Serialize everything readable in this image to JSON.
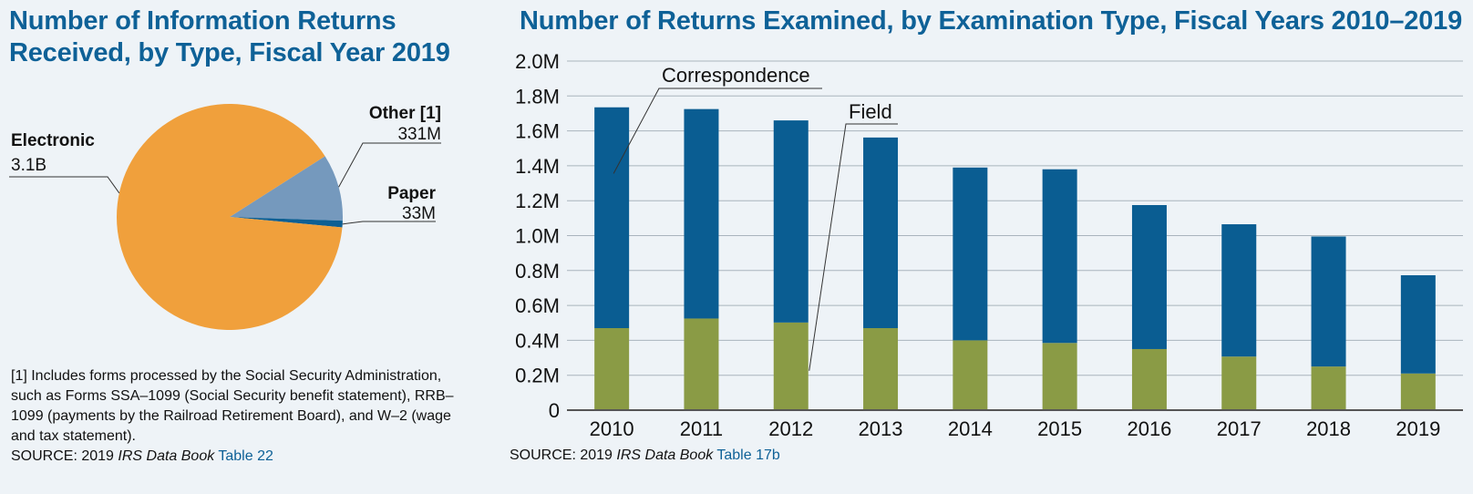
{
  "pie": {
    "title": "Number of Information Returns Received, by Type, Fiscal Year 2019",
    "footnote": "[1] Includes forms processed by the Social Security Administration, such as Forms SSA–1099 (Social Security benefit statement), RRB–1099 (payments by the Railroad Retirement Board), and W–2 (wage and tax statement).",
    "source_prefix": "SOURCE: 2019 ",
    "source_book": "IRS Data Book",
    "source_link": "Table 22"
  },
  "bar": {
    "title": "Number of Returns Examined, by Examination Type, Fiscal Years 2010–2019",
    "source_prefix": "SOURCE: 2019 ",
    "source_book": "IRS Data Book",
    "source_link": "Table 17b"
  },
  "chart_data": [
    {
      "type": "pie",
      "title": "Number of Information Returns Received, by Type, Fiscal Year 2019",
      "slices": [
        {
          "name": "Electronic",
          "label": "Electronic",
          "value_label": "3.1B",
          "value": 3100000000,
          "color": "#f0a03c"
        },
        {
          "name": "Other [1]",
          "label": "Other [1]",
          "value_label": "331M",
          "value": 331000000,
          "color": "#7599bd"
        },
        {
          "name": "Paper",
          "label": "Paper",
          "value_label": "33M",
          "value": 33000000,
          "color": "#0d5f93"
        }
      ]
    },
    {
      "type": "bar",
      "stacked": true,
      "title": "Number of Returns Examined, by Examination Type, Fiscal Years 2010–2019",
      "categories": [
        "2010",
        "2011",
        "2012",
        "2013",
        "2014",
        "2015",
        "2016",
        "2017",
        "2018",
        "2019"
      ],
      "series": [
        {
          "name": "Field",
          "color": "#8a9b45",
          "values": [
            470000,
            525000,
            502000,
            470000,
            400000,
            385000,
            350000,
            307000,
            250000,
            210000
          ]
        },
        {
          "name": "Correspondence",
          "color": "#0a5d92",
          "values": [
            1265000,
            1200000,
            1158000,
            1092000,
            990000,
            995000,
            825000,
            758000,
            745000,
            563000
          ]
        }
      ],
      "ylim": [
        0,
        2000000
      ],
      "yticks": [
        "0",
        "0.2M",
        "0.4M",
        "0.6M",
        "0.8M",
        "1.0M",
        "1.2M",
        "1.4M",
        "1.6M",
        "1.8M",
        "2.0M"
      ],
      "grid": true
    }
  ]
}
